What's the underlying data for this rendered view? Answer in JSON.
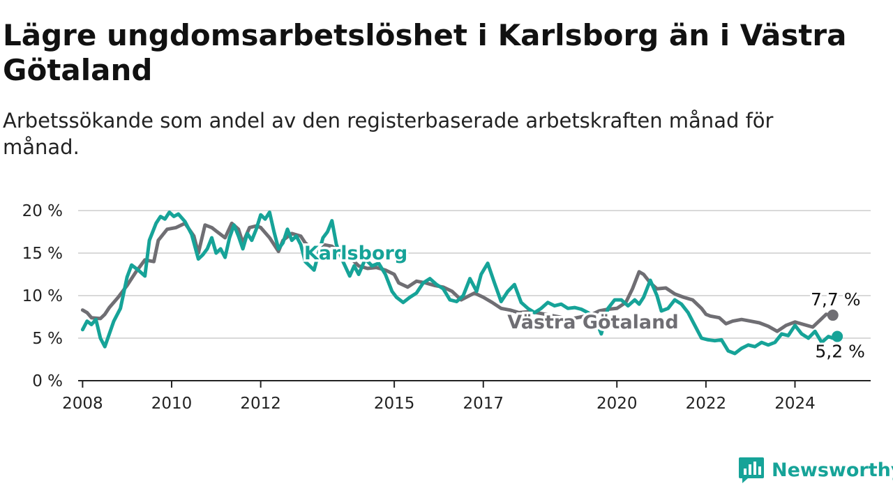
{
  "header": {
    "title": "Lägre ungdomsarbetslöshet i Karlsborg än i Västra Götaland",
    "subtitle": "Arbetssökande som andel av den registerbaserade arbetskraften månad för månad."
  },
  "brand": {
    "name": "Newsworthy",
    "icon": "newsworthy-logo-icon",
    "color": "#16a398"
  },
  "chart_data": {
    "type": "line",
    "title": "Lägre ungdomsarbetslöshet i Karlsborg än i Västra Götaland",
    "subtitle": "Arbetssökande som andel av den registerbaserade arbetskraften månad för månad.",
    "xlabel": "",
    "ylabel": "",
    "x_ticks": [
      "2008",
      "2010",
      "2012",
      "2015",
      "2017",
      "2020",
      "2022",
      "2024"
    ],
    "x_tick_values": [
      2008,
      2010,
      2012,
      2015,
      2017,
      2020,
      2022,
      2024
    ],
    "y_ticks": [
      "0 %",
      "5 %",
      "10 %",
      "15 %",
      "20 %"
    ],
    "y_tick_values": [
      0,
      5,
      10,
      15,
      20
    ],
    "xlim": [
      2007.9,
      2025.7
    ],
    "ylim": [
      0,
      20
    ],
    "grid": "horizontal",
    "legend": "direct labels on lines",
    "series": [
      {
        "name": "Västra Götaland",
        "color": "#6f6e73",
        "end_label": "7,7 %",
        "points": [
          [
            2008.0,
            8.3
          ],
          [
            2008.1,
            8.0
          ],
          [
            2008.2,
            7.4
          ],
          [
            2008.4,
            7.3
          ],
          [
            2008.5,
            7.8
          ],
          [
            2008.6,
            8.6
          ],
          [
            2008.8,
            9.8
          ],
          [
            2009.0,
            11.2
          ],
          [
            2009.2,
            12.8
          ],
          [
            2009.4,
            14.2
          ],
          [
            2009.6,
            14.0
          ],
          [
            2009.7,
            16.5
          ],
          [
            2009.9,
            17.8
          ],
          [
            2010.1,
            18.0
          ],
          [
            2010.3,
            18.5
          ],
          [
            2010.5,
            17.0
          ],
          [
            2010.6,
            15.0
          ],
          [
            2010.75,
            18.3
          ],
          [
            2010.9,
            18.0
          ],
          [
            2011.0,
            17.6
          ],
          [
            2011.2,
            16.8
          ],
          [
            2011.35,
            18.5
          ],
          [
            2011.5,
            17.8
          ],
          [
            2011.6,
            16.2
          ],
          [
            2011.75,
            18.0
          ],
          [
            2011.9,
            18.2
          ],
          [
            2012.0,
            18.0
          ],
          [
            2012.2,
            16.8
          ],
          [
            2012.3,
            16.0
          ],
          [
            2012.4,
            15.2
          ],
          [
            2012.5,
            16.5
          ],
          [
            2012.7,
            17.3
          ],
          [
            2012.9,
            17.0
          ],
          [
            2013.0,
            16.2
          ],
          [
            2013.2,
            15.3
          ],
          [
            2013.4,
            16.0
          ],
          [
            2013.6,
            15.8
          ],
          [
            2013.8,
            15.0
          ],
          [
            2014.0,
            14.5
          ],
          [
            2014.2,
            13.5
          ],
          [
            2014.4,
            13.2
          ],
          [
            2014.6,
            13.3
          ],
          [
            2014.8,
            13.0
          ],
          [
            2015.0,
            12.5
          ],
          [
            2015.1,
            11.5
          ],
          [
            2015.3,
            11.0
          ],
          [
            2015.5,
            11.7
          ],
          [
            2015.7,
            11.5
          ],
          [
            2015.9,
            11.2
          ],
          [
            2016.1,
            11.0
          ],
          [
            2016.3,
            10.5
          ],
          [
            2016.5,
            9.5
          ],
          [
            2016.8,
            10.3
          ],
          [
            2017.0,
            9.8
          ],
          [
            2017.2,
            9.2
          ],
          [
            2017.4,
            8.5
          ],
          [
            2017.6,
            8.3
          ],
          [
            2017.8,
            8.0
          ],
          [
            2018.0,
            8.1
          ],
          [
            2018.2,
            8.0
          ],
          [
            2018.4,
            7.8
          ],
          [
            2018.6,
            7.6
          ],
          [
            2018.8,
            7.4
          ],
          [
            2019.0,
            7.3
          ],
          [
            2019.2,
            7.5
          ],
          [
            2019.4,
            7.7
          ],
          [
            2019.6,
            8.2
          ],
          [
            2019.8,
            8.4
          ],
          [
            2020.0,
            8.5
          ],
          [
            2020.2,
            9.2
          ],
          [
            2020.35,
            10.8
          ],
          [
            2020.5,
            12.8
          ],
          [
            2020.6,
            12.5
          ],
          [
            2020.75,
            11.5
          ],
          [
            2020.9,
            10.8
          ],
          [
            2021.1,
            10.9
          ],
          [
            2021.3,
            10.2
          ],
          [
            2021.5,
            9.8
          ],
          [
            2021.7,
            9.5
          ],
          [
            2021.9,
            8.5
          ],
          [
            2022.0,
            7.8
          ],
          [
            2022.1,
            7.6
          ],
          [
            2022.3,
            7.4
          ],
          [
            2022.45,
            6.7
          ],
          [
            2022.6,
            7.0
          ],
          [
            2022.8,
            7.2
          ],
          [
            2023.0,
            7.0
          ],
          [
            2023.2,
            6.8
          ],
          [
            2023.4,
            6.4
          ],
          [
            2023.6,
            5.8
          ],
          [
            2023.8,
            6.5
          ],
          [
            2024.0,
            6.9
          ],
          [
            2024.2,
            6.6
          ],
          [
            2024.4,
            6.3
          ],
          [
            2024.6,
            7.3
          ],
          [
            2024.7,
            7.8
          ],
          [
            2024.85,
            7.7
          ]
        ]
      },
      {
        "name": "Karlsborg",
        "color": "#16a398",
        "end_label": "5,2 %",
        "points": [
          [
            2008.0,
            6.0
          ],
          [
            2008.1,
            7.0
          ],
          [
            2008.2,
            6.6
          ],
          [
            2008.3,
            7.2
          ],
          [
            2008.4,
            5.0
          ],
          [
            2008.5,
            4.0
          ],
          [
            2008.6,
            5.5
          ],
          [
            2008.7,
            7.0
          ],
          [
            2008.85,
            8.5
          ],
          [
            2009.0,
            12.2
          ],
          [
            2009.1,
            13.6
          ],
          [
            2009.25,
            13.0
          ],
          [
            2009.4,
            12.3
          ],
          [
            2009.5,
            16.5
          ],
          [
            2009.65,
            18.5
          ],
          [
            2009.75,
            19.3
          ],
          [
            2009.85,
            19.0
          ],
          [
            2009.95,
            19.8
          ],
          [
            2010.05,
            19.3
          ],
          [
            2010.15,
            19.6
          ],
          [
            2010.3,
            18.7
          ],
          [
            2010.45,
            17.2
          ],
          [
            2010.6,
            14.3
          ],
          [
            2010.7,
            14.8
          ],
          [
            2010.8,
            15.5
          ],
          [
            2010.9,
            16.8
          ],
          [
            2011.0,
            15.0
          ],
          [
            2011.1,
            15.5
          ],
          [
            2011.2,
            14.5
          ],
          [
            2011.3,
            16.8
          ],
          [
            2011.4,
            18.3
          ],
          [
            2011.5,
            17.0
          ],
          [
            2011.6,
            15.5
          ],
          [
            2011.7,
            17.3
          ],
          [
            2011.8,
            16.5
          ],
          [
            2011.9,
            17.8
          ],
          [
            2012.0,
            19.5
          ],
          [
            2012.1,
            19.0
          ],
          [
            2012.2,
            19.8
          ],
          [
            2012.3,
            17.5
          ],
          [
            2012.4,
            15.5
          ],
          [
            2012.5,
            16.2
          ],
          [
            2012.6,
            17.8
          ],
          [
            2012.7,
            16.5
          ],
          [
            2012.8,
            17.0
          ],
          [
            2012.9,
            16.0
          ],
          [
            2013.0,
            14.0
          ],
          [
            2013.1,
            13.5
          ],
          [
            2013.2,
            13.0
          ],
          [
            2013.3,
            15.0
          ],
          [
            2013.4,
            16.8
          ],
          [
            2013.5,
            17.5
          ],
          [
            2013.6,
            18.8
          ],
          [
            2013.7,
            16.0
          ],
          [
            2013.85,
            14.0
          ],
          [
            2014.0,
            12.3
          ],
          [
            2014.1,
            13.5
          ],
          [
            2014.2,
            12.5
          ],
          [
            2014.35,
            14.3
          ],
          [
            2014.5,
            13.5
          ],
          [
            2014.65,
            13.8
          ],
          [
            2014.8,
            12.5
          ],
          [
            2014.95,
            10.5
          ],
          [
            2015.05,
            9.8
          ],
          [
            2015.2,
            9.2
          ],
          [
            2015.35,
            9.8
          ],
          [
            2015.5,
            10.3
          ],
          [
            2015.65,
            11.5
          ],
          [
            2015.8,
            12.0
          ],
          [
            2015.95,
            11.3
          ],
          [
            2016.1,
            10.8
          ],
          [
            2016.25,
            9.5
          ],
          [
            2016.4,
            9.3
          ],
          [
            2016.55,
            10.0
          ],
          [
            2016.7,
            12.0
          ],
          [
            2016.85,
            10.5
          ],
          [
            2016.95,
            12.5
          ],
          [
            2017.1,
            13.8
          ],
          [
            2017.25,
            11.5
          ],
          [
            2017.4,
            9.3
          ],
          [
            2017.55,
            10.5
          ],
          [
            2017.7,
            11.3
          ],
          [
            2017.85,
            9.2
          ],
          [
            2018.0,
            8.5
          ],
          [
            2018.15,
            8.0
          ],
          [
            2018.3,
            8.5
          ],
          [
            2018.45,
            9.2
          ],
          [
            2018.6,
            8.8
          ],
          [
            2018.75,
            9.0
          ],
          [
            2018.9,
            8.5
          ],
          [
            2019.05,
            8.6
          ],
          [
            2019.2,
            8.4
          ],
          [
            2019.35,
            8.0
          ],
          [
            2019.5,
            7.5
          ],
          [
            2019.65,
            5.5
          ],
          [
            2019.8,
            8.5
          ],
          [
            2019.95,
            9.5
          ],
          [
            2020.1,
            9.5
          ],
          [
            2020.25,
            8.8
          ],
          [
            2020.4,
            9.5
          ],
          [
            2020.5,
            9.0
          ],
          [
            2020.6,
            9.8
          ],
          [
            2020.75,
            11.8
          ],
          [
            2020.9,
            10.0
          ],
          [
            2021.0,
            8.2
          ],
          [
            2021.15,
            8.5
          ],
          [
            2021.3,
            9.5
          ],
          [
            2021.45,
            9.0
          ],
          [
            2021.6,
            8.0
          ],
          [
            2021.75,
            6.5
          ],
          [
            2021.9,
            5.0
          ],
          [
            2022.05,
            4.8
          ],
          [
            2022.2,
            4.7
          ],
          [
            2022.35,
            4.8
          ],
          [
            2022.5,
            3.5
          ],
          [
            2022.65,
            3.2
          ],
          [
            2022.8,
            3.8
          ],
          [
            2022.95,
            4.2
          ],
          [
            2023.1,
            4.0
          ],
          [
            2023.25,
            4.5
          ],
          [
            2023.4,
            4.2
          ],
          [
            2023.55,
            4.5
          ],
          [
            2023.7,
            5.5
          ],
          [
            2023.85,
            5.3
          ],
          [
            2024.0,
            6.5
          ],
          [
            2024.15,
            5.5
          ],
          [
            2024.3,
            5.0
          ],
          [
            2024.45,
            5.8
          ],
          [
            2024.6,
            4.5
          ],
          [
            2024.75,
            5.2
          ],
          [
            2024.85,
            5.0
          ],
          [
            2024.95,
            5.2
          ]
        ]
      }
    ]
  }
}
